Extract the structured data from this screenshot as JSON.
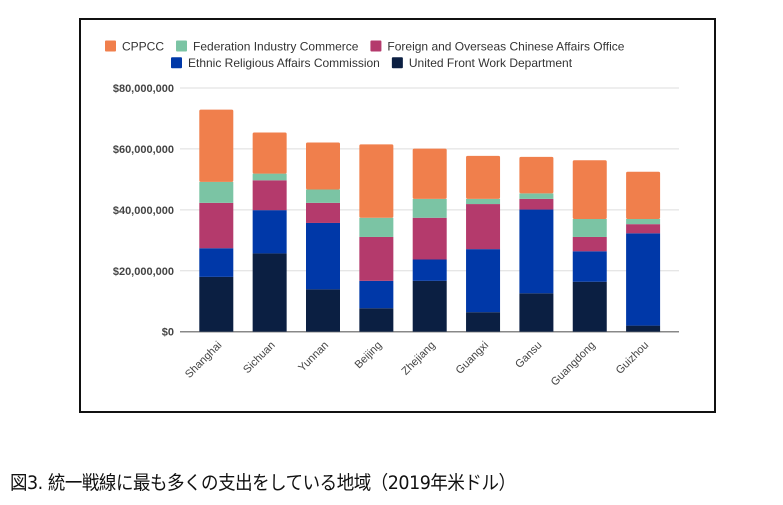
{
  "caption": "図3. 統一戦線に最も多くの支出をしている地域（2019年米ドル）",
  "chart_data": {
    "type": "bar",
    "stacked": true,
    "title": "",
    "xlabel": "",
    "ylabel": "",
    "ylim": [
      0,
      80000000
    ],
    "yticks": [
      0,
      20000000,
      40000000,
      60000000,
      80000000
    ],
    "ytick_labels": [
      "$0",
      "$20,000,000",
      "$40,000,000",
      "$60,000,000",
      "$80,000,000"
    ],
    "grid": true,
    "legend_position": "top",
    "categories": [
      "Shanghai",
      "Sichuan",
      "Yunnan",
      "Beijing",
      "Zhejiang",
      "Guangxi",
      "Gansu",
      "Guangdong",
      "Guizhou"
    ],
    "series": [
      {
        "name": "United Front Work Department",
        "color": "#0b1f42",
        "values": [
          18000000,
          25700000,
          13900000,
          7700000,
          16700000,
          6400000,
          12600000,
          16400000,
          2000000
        ]
      },
      {
        "name": "Ethnic Religious Affairs Commission",
        "color": "#0038a8",
        "values": [
          9400000,
          14200000,
          21800000,
          9000000,
          7000000,
          20700000,
          27500000,
          10000000,
          30300000
        ]
      },
      {
        "name": "Foreign and Overseas Chinese Affairs Office",
        "color": "#b43a6c",
        "values": [
          14900000,
          9800000,
          6600000,
          14400000,
          13700000,
          14800000,
          3500000,
          4700000,
          3000000
        ]
      },
      {
        "name": "Federation Industry Commerce",
        "color": "#7bc4a4",
        "values": [
          6900000,
          2200000,
          4400000,
          6300000,
          6200000,
          1700000,
          1800000,
          5900000,
          1700000
        ]
      },
      {
        "name": "CPPCC",
        "color": "#f07f4c",
        "values": [
          23700000,
          13500000,
          15400000,
          24100000,
          16500000,
          14100000,
          12000000,
          19300000,
          15500000
        ]
      }
    ],
    "legend_order": [
      "CPPCC",
      "Federation Industry Commerce",
      "Foreign and Overseas Chinese Affairs Office",
      "Ethnic Religious Affairs Commission",
      "United Front Work Department"
    ]
  }
}
